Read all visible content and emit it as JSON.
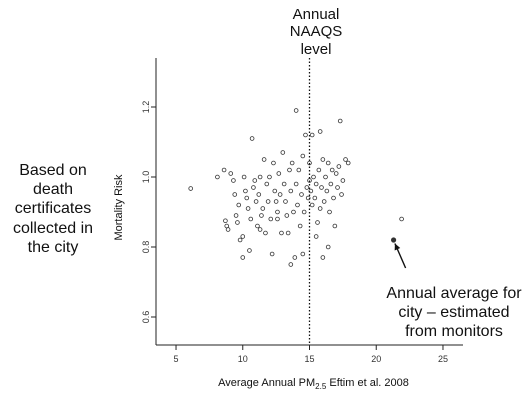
{
  "chart_data": {
    "type": "scatter",
    "title": "",
    "xlabel_main": "Average Annual PM",
    "xlabel_sub": "2.5",
    "xlabel_tail": " Eftim et al. 2008",
    "ylabel": "Mortality Risk",
    "xlim": [
      3.5,
      26.5
    ],
    "ylim": [
      0.52,
      1.34
    ],
    "xticks": [
      5,
      10,
      15,
      20,
      25
    ],
    "yticks": [
      0.6,
      0.8,
      1.0,
      1.2
    ],
    "xtick_labels": [
      "5",
      "10",
      "15",
      "20",
      "25"
    ],
    "ytick_labels": [
      "0.6",
      "0.8",
      "1.0",
      "1.2"
    ],
    "grid": false,
    "reference_line": {
      "x": 15,
      "style": "dotted"
    },
    "highlight_point": {
      "x": 21.3,
      "y": 0.82,
      "filled": true
    },
    "arrow": {
      "from": [
        22.2,
        0.74
      ],
      "to": [
        21.4,
        0.81
      ]
    },
    "points": [
      [
        6.1,
        0.967
      ],
      [
        8.1,
        1.0
      ],
      [
        8.6,
        1.02
      ],
      [
        8.7,
        0.875
      ],
      [
        8.8,
        0.86
      ],
      [
        8.9,
        0.85
      ],
      [
        9.1,
        1.01
      ],
      [
        9.3,
        0.99
      ],
      [
        9.4,
        0.95
      ],
      [
        9.5,
        0.89
      ],
      [
        9.6,
        0.87
      ],
      [
        9.7,
        0.92
      ],
      [
        9.8,
        0.82
      ],
      [
        10.0,
        0.77
      ],
      [
        10.1,
        1.0
      ],
      [
        10.2,
        0.96
      ],
      [
        10.3,
        0.94
      ],
      [
        10.4,
        0.91
      ],
      [
        10.5,
        0.79
      ],
      [
        10.6,
        0.88
      ],
      [
        10.7,
        1.11
      ],
      [
        10.8,
        0.97
      ],
      [
        10.9,
        0.99
      ],
      [
        11.0,
        0.93
      ],
      [
        11.1,
        0.86
      ],
      [
        11.2,
        0.95
      ],
      [
        11.3,
        1.0
      ],
      [
        11.4,
        0.89
      ],
      [
        11.5,
        0.91
      ],
      [
        11.6,
        1.05
      ],
      [
        11.7,
        0.84
      ],
      [
        11.8,
        0.98
      ],
      [
        11.9,
        0.93
      ],
      [
        12.0,
        1.0
      ],
      [
        12.1,
        0.88
      ],
      [
        12.2,
        0.78
      ],
      [
        12.3,
        1.04
      ],
      [
        12.4,
        0.96
      ],
      [
        12.5,
        0.93
      ],
      [
        12.6,
        0.88
      ],
      [
        12.7,
        1.01
      ],
      [
        12.8,
        0.95
      ],
      [
        12.9,
        0.84
      ],
      [
        13.0,
        1.07
      ],
      [
        13.1,
        0.98
      ],
      [
        13.2,
        0.93
      ],
      [
        13.3,
        0.89
      ],
      [
        13.4,
        0.84
      ],
      [
        13.5,
        1.02
      ],
      [
        13.6,
        0.96
      ],
      [
        13.7,
        1.04
      ],
      [
        13.8,
        0.9
      ],
      [
        13.9,
        0.77
      ],
      [
        14.0,
        1.19
      ],
      [
        14.0,
        0.98
      ],
      [
        14.1,
        0.92
      ],
      [
        14.2,
        1.02
      ],
      [
        14.3,
        0.86
      ],
      [
        14.4,
        0.95
      ],
      [
        14.5,
        1.06
      ],
      [
        14.6,
        0.9
      ],
      [
        14.7,
        1.12
      ],
      [
        14.8,
        0.97
      ],
      [
        14.9,
        0.94
      ],
      [
        15.0,
        0.99
      ],
      [
        15.0,
        1.04
      ],
      [
        15.1,
        0.96
      ],
      [
        15.2,
        0.92
      ],
      [
        15.2,
        1.12
      ],
      [
        15.3,
        1.0
      ],
      [
        15.4,
        0.94
      ],
      [
        15.5,
        0.98
      ],
      [
        15.6,
        0.87
      ],
      [
        15.7,
        1.02
      ],
      [
        15.8,
        0.91
      ],
      [
        15.8,
        1.13
      ],
      [
        15.9,
        0.97
      ],
      [
        16.0,
        1.05
      ],
      [
        16.0,
        0.77
      ],
      [
        16.1,
        0.93
      ],
      [
        16.2,
        1.0
      ],
      [
        16.3,
        0.96
      ],
      [
        16.4,
        1.04
      ],
      [
        16.5,
        0.9
      ],
      [
        16.6,
        0.98
      ],
      [
        16.7,
        1.02
      ],
      [
        16.8,
        0.94
      ],
      [
        16.9,
        0.86
      ],
      [
        17.0,
        1.01
      ],
      [
        17.1,
        0.97
      ],
      [
        17.2,
        1.03
      ],
      [
        17.3,
        1.16
      ],
      [
        17.4,
        0.95
      ],
      [
        17.5,
        0.99
      ],
      [
        17.7,
        1.05
      ],
      [
        17.9,
        1.04
      ],
      [
        16.4,
        0.8
      ],
      [
        13.6,
        0.75
      ],
      [
        11.3,
        0.85
      ],
      [
        10.0,
        0.83
      ],
      [
        12.6,
        0.9
      ],
      [
        15.5,
        0.83
      ],
      [
        14.5,
        0.78
      ],
      [
        21.9,
        0.88
      ]
    ]
  },
  "annotations": {
    "left": [
      "Based on",
      "death",
      "certificates",
      "collected in",
      "the city"
    ],
    "top": [
      "Annual",
      "NAAQS",
      "level"
    ],
    "right": [
      "Annual average for",
      "city – estimated",
      "from monitors"
    ]
  }
}
